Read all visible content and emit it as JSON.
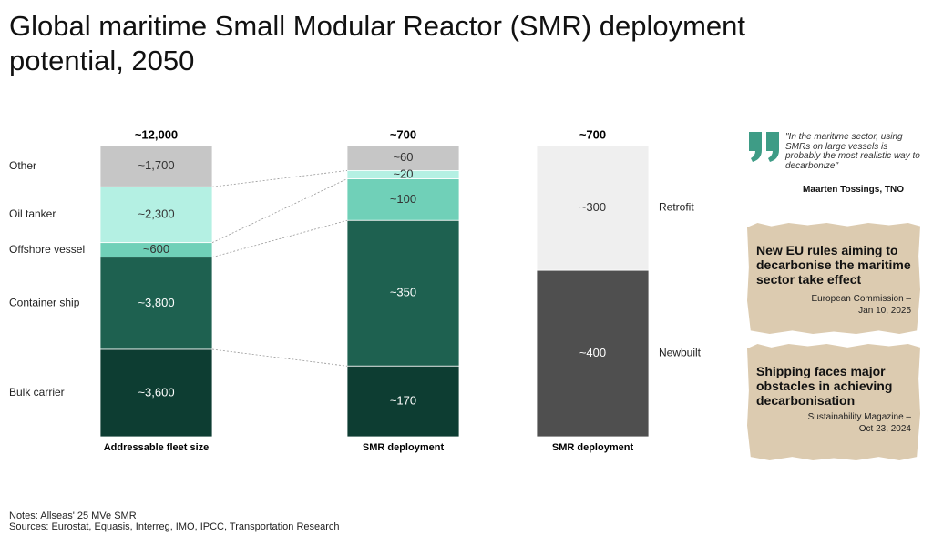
{
  "chart_data": {
    "type": "stacked_bar",
    "title": "Global maritime Small Modular Reactor (SMR) deployment potential, 2050",
    "columns": [
      {
        "category": "Addressable fleet size",
        "total": 12000,
        "total_label": "~12,000",
        "name_side": "left",
        "segments": [
          {
            "name": "Other",
            "value": 1700,
            "value_label": "~1,700",
            "color": "#c6c6c6"
          },
          {
            "name": "Oil tanker",
            "value": 2300,
            "value_label": "~2,300",
            "color": "#b4f0e3"
          },
          {
            "name": "Offshore vessel",
            "value": 600,
            "value_label": "~600",
            "color": "#70d0b8"
          },
          {
            "name": "Container ship",
            "value": 3800,
            "value_label": "~3,800",
            "color": "#1e6150"
          },
          {
            "name": "Bulk carrier",
            "value": 3600,
            "value_label": "~3,600",
            "color": "#0d3d32"
          }
        ]
      },
      {
        "category": "SMR deployment",
        "total": 700,
        "total_label": "~700",
        "segments": [
          {
            "value": 60,
            "value_label": "~60",
            "color": "#c6c6c6"
          },
          {
            "value": 20,
            "value_label": "~20",
            "color": "#b4f0e3"
          },
          {
            "value": 100,
            "value_label": "~100",
            "color": "#70d0b8"
          },
          {
            "value": 350,
            "value_label": "~350",
            "color": "#1e6150"
          },
          {
            "value": 170,
            "value_label": "~170",
            "color": "#0d3d32"
          }
        ]
      },
      {
        "category": "SMR deployment",
        "total": 700,
        "total_label": "~700",
        "name_side": "right",
        "segments": [
          {
            "name": "Retrofit",
            "value": 300,
            "value_label": "~300",
            "color": "#efefef"
          },
          {
            "name": "Newbuilt",
            "value": 400,
            "value_label": "~400",
            "color": "#4f4f4f"
          }
        ]
      }
    ]
  },
  "sidebar": {
    "quote": {
      "text": "\"In the maritime sector, using SMRs on large vessels is probably the most realistic way to decarbonize\"",
      "author": "Maarten Tossings, TNO"
    },
    "clippings": [
      {
        "headline": "New EU rules aiming to decarbonise the maritime sector take effect",
        "source": [
          "European Commission –",
          "Jan 10, 2025"
        ]
      },
      {
        "headline": "Shipping faces major obstacles in achieving decarbonisation",
        "source": [
          "Sustainability Magazine –",
          "Oct 23, 2024"
        ]
      }
    ]
  },
  "notes": [
    "Notes: Allseas' 25 MVe SMR",
    "Sources: Eurostat, Equasis, Interreg, IMO, IPCC, Transportation Research"
  ]
}
